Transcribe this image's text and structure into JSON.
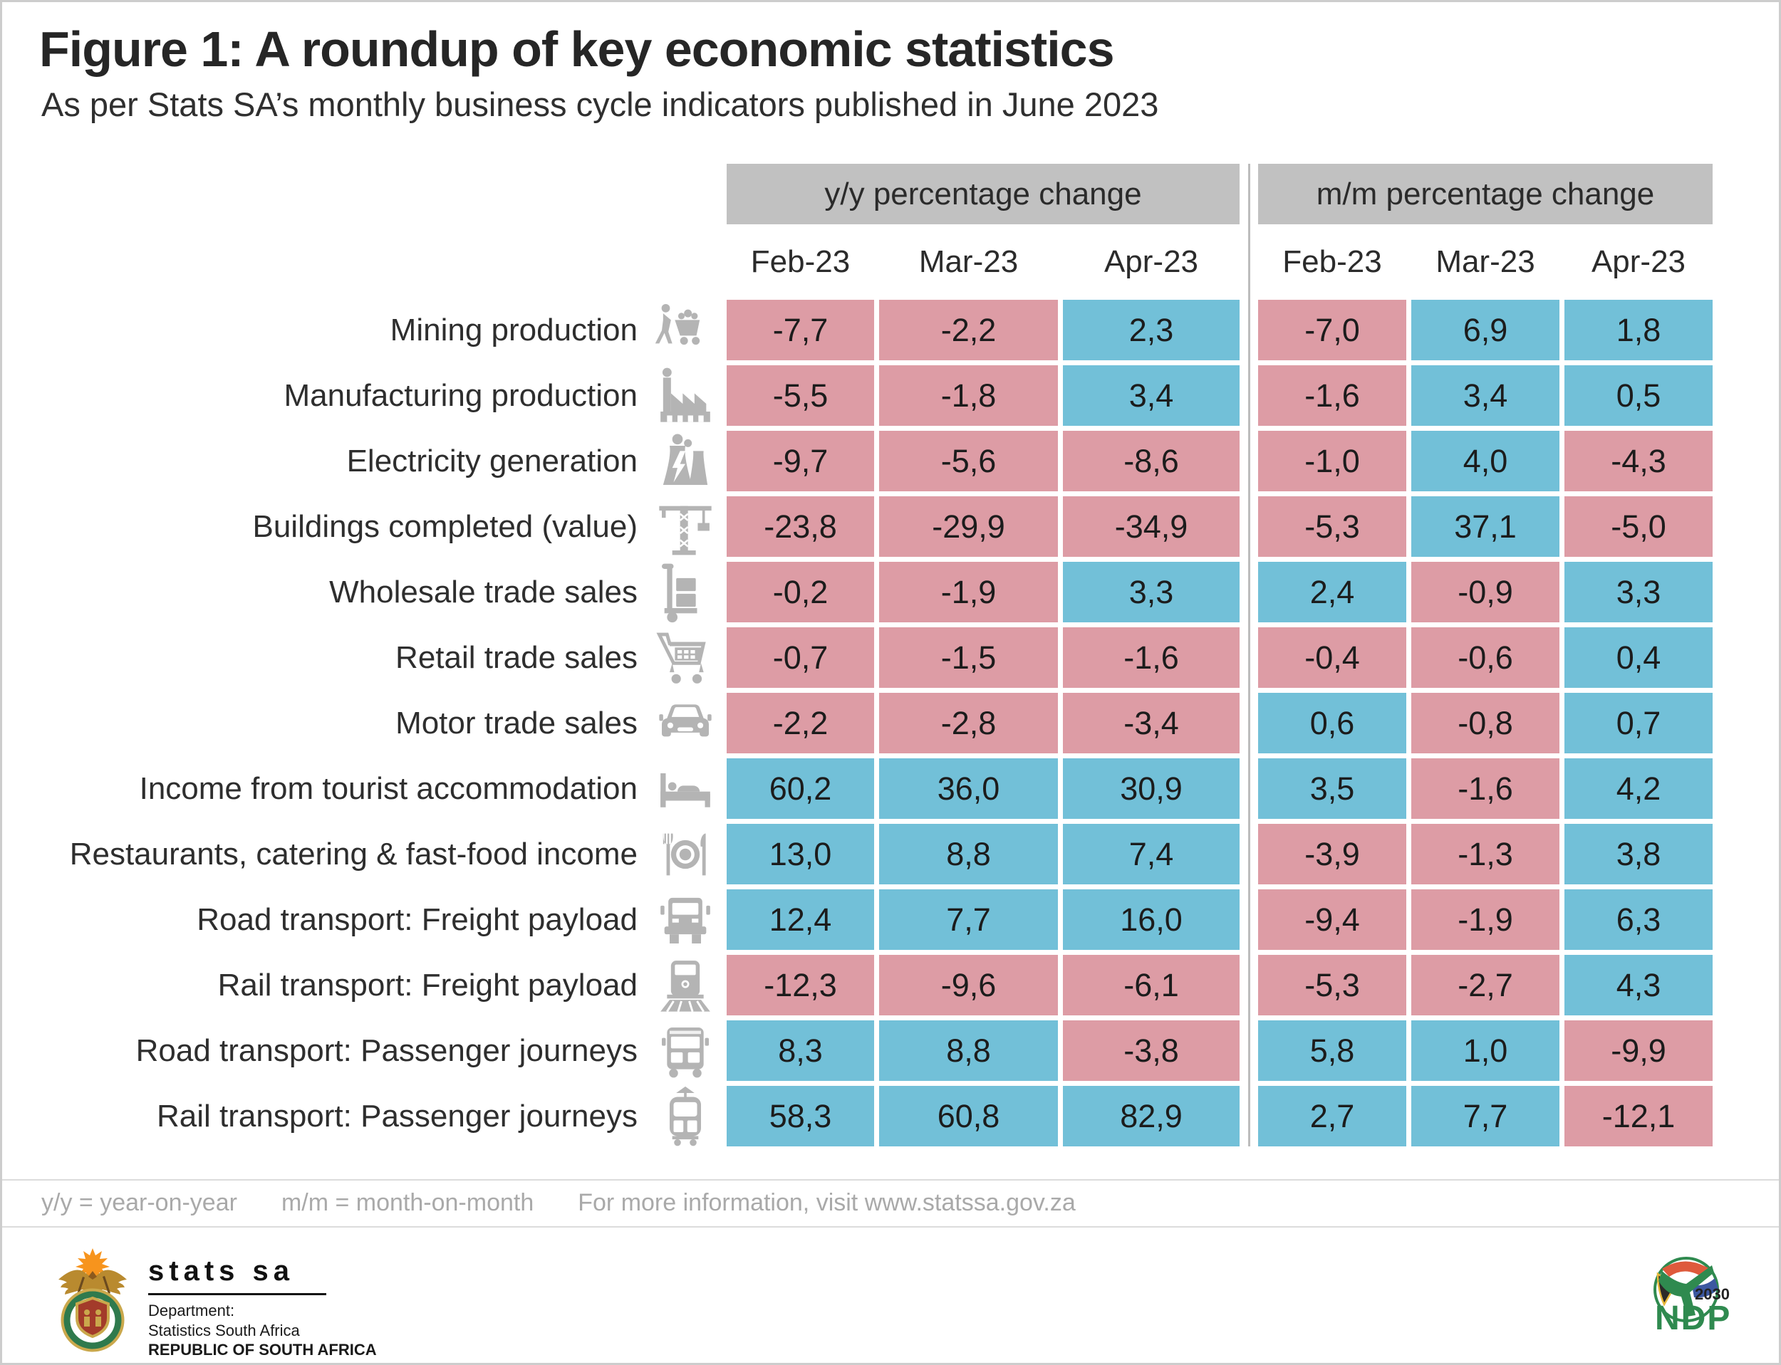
{
  "title": "Figure 1: A roundup of key economic statistics",
  "subtitle": "As per Stats SA’s monthly business cycle indicators published in June 2023",
  "table": {
    "group_headers": [
      "y/y percentage change",
      "m/m percentage change"
    ],
    "months": [
      "Feb-23",
      "Mar-23",
      "Apr-23"
    ]
  },
  "chart_data": {
    "type": "table",
    "title": "Figure 1: A roundup of key economic statistics",
    "subtitle": "As per Stats SA’s monthly business cycle indicators published in June 2023",
    "column_groups": [
      "y/y percentage change",
      "m/m percentage change"
    ],
    "columns": [
      "Feb-23",
      "Mar-23",
      "Apr-23"
    ],
    "value_format": "one decimal place, comma decimal separator",
    "color_rule": "negative values shaded pink, positive values shaded blue",
    "rows": [
      {
        "label": "Mining production",
        "icon": "mining",
        "yy": [
          -7.7,
          -2.2,
          2.3
        ],
        "mm": [
          -7.0,
          6.9,
          1.8
        ]
      },
      {
        "label": "Manufacturing production",
        "icon": "factory",
        "yy": [
          -5.5,
          -1.8,
          3.4
        ],
        "mm": [
          -1.6,
          3.4,
          0.5
        ]
      },
      {
        "label": "Electricity generation",
        "icon": "electricity",
        "yy": [
          -9.7,
          -5.6,
          -8.6
        ],
        "mm": [
          -1.0,
          4.0,
          -4.3
        ]
      },
      {
        "label": "Buildings completed (value)",
        "icon": "crane",
        "yy": [
          -23.8,
          -29.9,
          -34.9
        ],
        "mm": [
          -5.3,
          37.1,
          -5.0
        ]
      },
      {
        "label": "Wholesale trade sales",
        "icon": "handtruck",
        "yy": [
          -0.2,
          -1.9,
          3.3
        ],
        "mm": [
          2.4,
          -0.9,
          3.3
        ]
      },
      {
        "label": "Retail trade sales",
        "icon": "shopping-cart",
        "yy": [
          -0.7,
          -1.5,
          -1.6
        ],
        "mm": [
          -0.4,
          -0.6,
          0.4
        ]
      },
      {
        "label": "Motor trade sales",
        "icon": "car",
        "yy": [
          -2.2,
          -2.8,
          -3.4
        ],
        "mm": [
          0.6,
          -0.8,
          0.7
        ]
      },
      {
        "label": "Income from tourist accommodation",
        "icon": "bed",
        "yy": [
          60.2,
          36.0,
          30.9
        ],
        "mm": [
          3.5,
          -1.6,
          4.2
        ]
      },
      {
        "label": "Restaurants, catering & fast-food income",
        "icon": "restaurant",
        "yy": [
          13.0,
          8.8,
          7.4
        ],
        "mm": [
          -3.9,
          -1.3,
          3.8
        ]
      },
      {
        "label": "Road transport: Freight payload",
        "icon": "truck",
        "yy": [
          12.4,
          7.7,
          16.0
        ],
        "mm": [
          -9.4,
          -1.9,
          6.3
        ]
      },
      {
        "label": "Rail transport: Freight payload",
        "icon": "locomotive",
        "yy": [
          -12.3,
          -9.6,
          -6.1
        ],
        "mm": [
          -5.3,
          -2.7,
          4.3
        ]
      },
      {
        "label": "Road transport: Passenger journeys",
        "icon": "bus",
        "yy": [
          8.3,
          8.8,
          -3.8
        ],
        "mm": [
          5.8,
          1.0,
          -9.9
        ]
      },
      {
        "label": "Rail transport: Passenger journeys",
        "icon": "tram",
        "yy": [
          58.3,
          60.8,
          82.9
        ],
        "mm": [
          2.7,
          7.7,
          -12.1
        ]
      }
    ]
  },
  "colors": {
    "positive": "#72c0d8",
    "negative": "#dd9ca5",
    "header_bg": "#c1c1c1",
    "icon_gray": "#b4b4b4"
  },
  "footer": {
    "note_yy": "y/y = year-on-year",
    "note_mm": "m/m = month-on-month",
    "info": "For more information, visit www.statssa.gov.za"
  },
  "branding": {
    "statssa": {
      "wordmark": "stats sa",
      "dept": "Department:",
      "org": "Statistics South Africa",
      "country": "REPUBLIC OF SOUTH AFRICA"
    },
    "ndp": {
      "acronym": "NDP",
      "year": "2030"
    }
  }
}
